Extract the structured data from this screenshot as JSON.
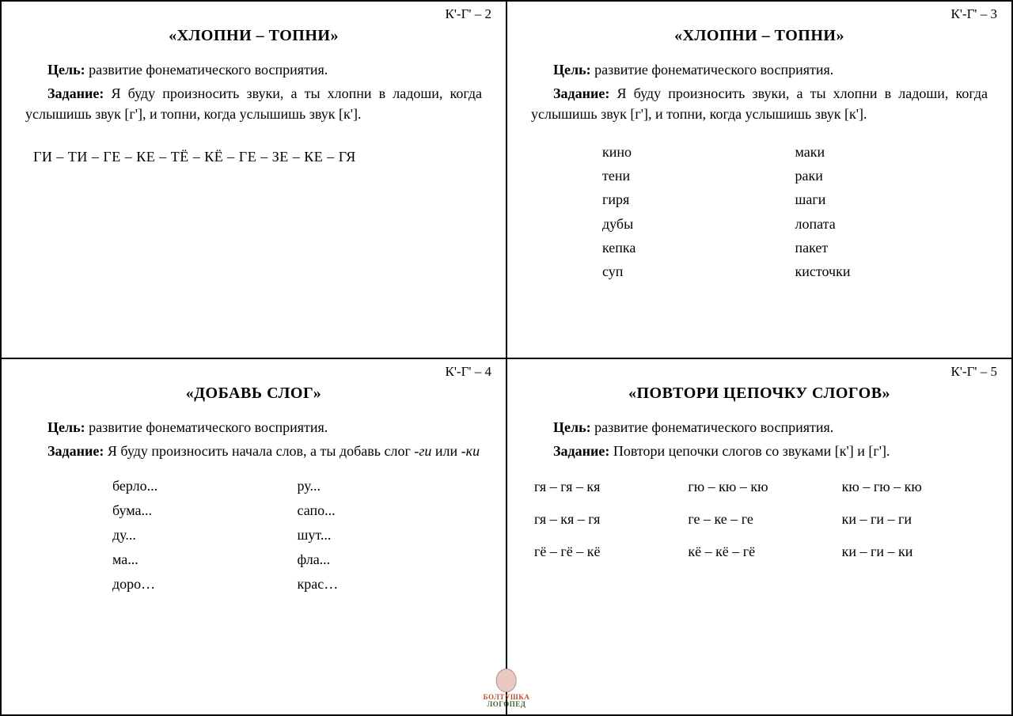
{
  "cards": [
    {
      "code": "К'-Г' – 2",
      "title": "«ХЛОПНИ – ТОПНИ»",
      "goal_label": "Цель:",
      "goal_text": " развитие фонематического восприятия.",
      "task_label": "Задание:",
      "task_text": " Я буду произносить звуки, а ты хлопни в ладоши, когда услышишь звук [г'], и топни, когда услышишь звук [к'].",
      "sequence": "ГИ – ТИ – ГЕ – КЕ – ТЁ – КЁ – ГЕ – ЗЕ – КЕ – ГЯ"
    },
    {
      "code": "К'-Г' – 3",
      "title": "«ХЛОПНИ – ТОПНИ»",
      "goal_label": "Цель:",
      "goal_text": " развитие фонематического восприятия.",
      "task_label": "Задание:",
      "task_text": " Я буду произносить звуки, а ты хлопни в ладоши, когда услышишь звук [г'], и топни, когда услышишь звук [к'].",
      "col1": [
        "кино",
        "тени",
        "гиря",
        "дубы",
        "кепка",
        "суп"
      ],
      "col2": [
        "маки",
        "раки",
        "шаги",
        "лопата",
        "пакет",
        "кисточки"
      ]
    },
    {
      "code": "К'-Г' – 4",
      "title": "«ДОБАВЬ СЛОГ»",
      "goal_label": "Цель:",
      "goal_text": " развитие фонематического восприятия.",
      "task_label": "Задание:",
      "task_text_a": " Я буду произносить начала слов, а ты добавь слог ",
      "task_text_i1": "-ги",
      "task_text_b": " или ",
      "task_text_i2": "-ки",
      "col1": [
        "берло...",
        "бума...",
        "ду...",
        "ма...",
        "доро…"
      ],
      "col2": [
        "ру...",
        "сапо...",
        "шут...",
        "фла...",
        "крас…"
      ]
    },
    {
      "code": "К'-Г' – 5",
      "title": "«ПОВТОРИ ЦЕПОЧКУ СЛОГОВ»",
      "goal_label": "Цель:",
      "goal_text": " развитие фонематического восприятия.",
      "task_label": "Задание:",
      "task_text": " Повтори цепочки слогов со звуками [к'] и [г'].",
      "rows": [
        [
          "гя – гя – кя",
          "гю – кю – кю",
          "кю – гю – кю"
        ],
        [
          "гя – кя – гя",
          "ге – ке – ге",
          "ки – ги – ги"
        ],
        [
          "гё – гё – кё",
          "кё – кё – гё",
          "ки – ги – ки"
        ]
      ]
    }
  ],
  "logo": {
    "line1": "БОЛТУШКА",
    "line2": "ЛОГОПЕД"
  }
}
